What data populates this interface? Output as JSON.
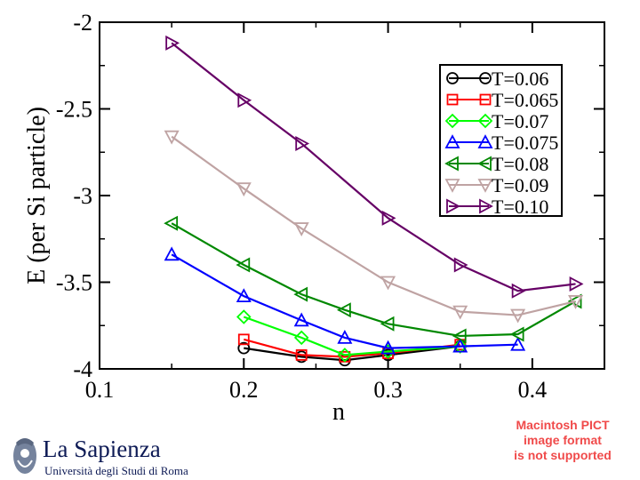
{
  "chart_data": {
    "type": "line",
    "title": "",
    "xlabel": "n",
    "ylabel": "E (per Si particle)",
    "xlim": [
      0.1,
      0.45
    ],
    "ylim": [
      -4,
      -2
    ],
    "xticks": [
      0.1,
      0.2,
      0.3,
      0.4
    ],
    "xtick_labels": [
      "0.1",
      "0.2",
      "0.3",
      "0.4"
    ],
    "yticks": [
      -2,
      -2.5,
      -3,
      -3.5,
      -4
    ],
    "ytick_labels": [
      "-2",
      "-2.5",
      "-3",
      "-3.5",
      "-4"
    ],
    "grid": false,
    "legend_position": "top-right",
    "series": [
      {
        "name": "T=0.06",
        "color": "#000000",
        "marker": "circle",
        "x": [
          0.2,
          0.24,
          0.27,
          0.3,
          0.35
        ],
        "y": [
          -3.88,
          -3.93,
          -3.95,
          -3.92,
          -3.87
        ]
      },
      {
        "name": "T=0.065",
        "color": "#ff0000",
        "marker": "square",
        "x": [
          0.2,
          0.24,
          0.27,
          0.3,
          0.35
        ],
        "y": [
          -3.83,
          -3.92,
          -3.93,
          -3.91,
          -3.86
        ]
      },
      {
        "name": "T=0.07",
        "color": "#00ff00",
        "marker": "diamond",
        "x": [
          0.2,
          0.24,
          0.27,
          0.3,
          0.35
        ],
        "y": [
          -3.7,
          -3.82,
          -3.92,
          -3.9,
          -3.87
        ]
      },
      {
        "name": "T=0.075",
        "color": "#0000ff",
        "marker": "triangle-up",
        "x": [
          0.15,
          0.2,
          0.24,
          0.27,
          0.3,
          0.35,
          0.39
        ],
        "y": [
          -3.34,
          -3.58,
          -3.72,
          -3.82,
          -3.88,
          -3.87,
          -3.86
        ]
      },
      {
        "name": "T=0.08",
        "color": "#008800",
        "marker": "triangle-left",
        "x": [
          0.15,
          0.2,
          0.24,
          0.27,
          0.3,
          0.35,
          0.39,
          0.43
        ],
        "y": [
          -3.16,
          -3.4,
          -3.57,
          -3.66,
          -3.74,
          -3.81,
          -3.8,
          -3.61
        ]
      },
      {
        "name": "T=0.09",
        "color": "#bfa3a3",
        "marker": "triangle-down",
        "x": [
          0.15,
          0.2,
          0.24,
          0.3,
          0.35,
          0.39,
          0.43
        ],
        "y": [
          -2.66,
          -2.96,
          -3.19,
          -3.5,
          -3.67,
          -3.69,
          -3.61
        ]
      },
      {
        "name": "T=0.10",
        "color": "#660066",
        "marker": "triangle-right",
        "x": [
          0.15,
          0.2,
          0.24,
          0.3,
          0.35,
          0.39,
          0.43
        ],
        "y": [
          -2.12,
          -2.45,
          -2.7,
          -3.13,
          -3.4,
          -3.55,
          -3.51
        ]
      }
    ]
  },
  "footer": {
    "logo_title": "La Sapienza",
    "logo_subtitle": "Università degli Studi di Roma",
    "pict_note_lines": [
      "Macintosh PICT",
      "image format",
      "is not supported"
    ]
  }
}
